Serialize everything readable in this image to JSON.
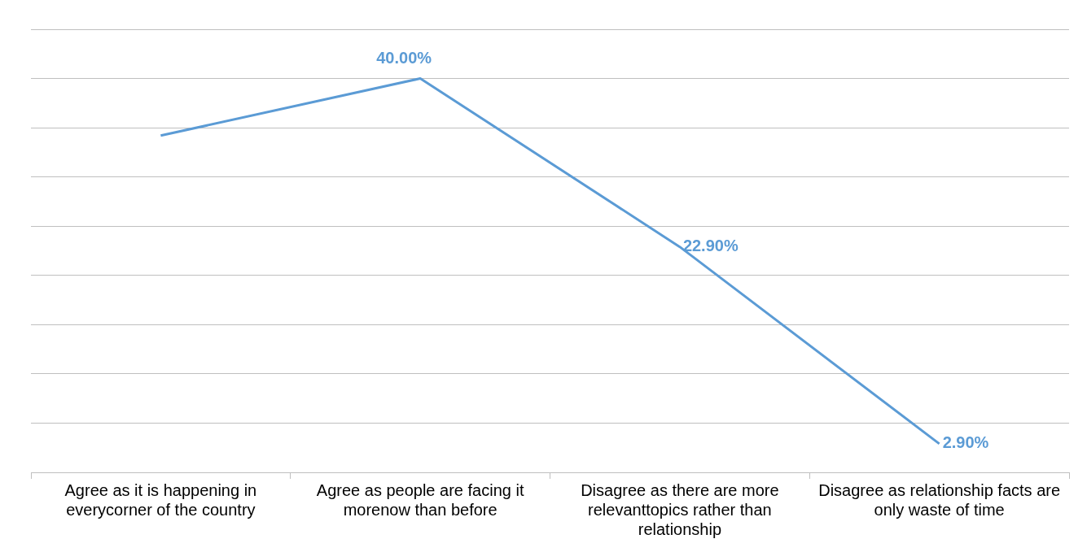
{
  "chart_data": {
    "type": "line",
    "categories": [
      "Agree as it is happening in everycorner of the country",
      "Agree as people are facing it morenow than before",
      "Disagree as there are more relevanttopics rather than relationship",
      "Disagree as relationship facts are only waste of time"
    ],
    "series": [
      {
        "color": "#5b9bd5",
        "values": [
          34.2,
          40.0,
          22.9,
          2.9
        ],
        "value_labels": [
          null,
          "40.00%",
          "22.90%",
          "2.90%"
        ]
      }
    ],
    "ylim": [
      0,
      45
    ],
    "yticks": [
      {
        "value": 0,
        "label": null
      },
      {
        "value": 5,
        "label": null
      },
      {
        "value": 10,
        "label": null
      },
      {
        "value": 15,
        "label": null
      },
      {
        "value": 20,
        "label": null
      },
      {
        "value": 25,
        "label": null
      },
      {
        "value": 30,
        "label": null
      },
      {
        "value": 35,
        "label": null
      },
      {
        "value": 40,
        "label": null
      },
      {
        "value": 45,
        "label": null
      }
    ],
    "grid": "y",
    "legend": false,
    "tick_labels": "x",
    "marker": "none",
    "line_style": "solid"
  }
}
